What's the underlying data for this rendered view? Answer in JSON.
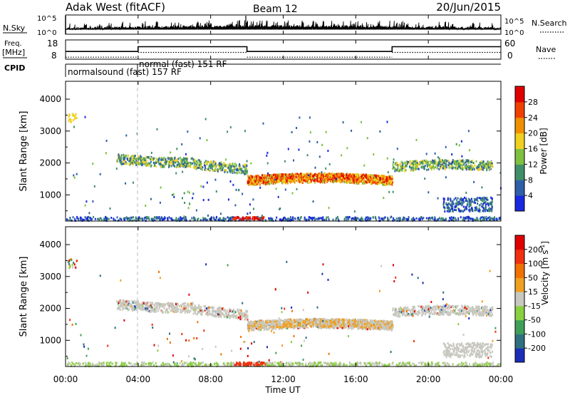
{
  "header": {
    "title": "Adak West (fitACF)",
    "beam": "Beam 12",
    "date": "20/Jun/2015"
  },
  "chart_data": [
    {
      "type": "line",
      "name_label": "N.Sky",
      "right_label": "N.Search",
      "left_ticks": [
        "10^5",
        "10^0"
      ],
      "right_ticks": [
        "10^5",
        "10^0"
      ]
    },
    {
      "type": "line",
      "name_label_top": "Freq.",
      "name_label_bottom": "[MHz]",
      "right_label": "Nave",
      "left_ticks": [
        "18",
        "8"
      ],
      "right_ticks": [
        "60",
        "0"
      ],
      "freq_segments": [
        {
          "from_h": 0,
          "to_h": 4,
          "value": 12
        },
        {
          "from_h": 4,
          "to_h": 10,
          "value": 14.5
        },
        {
          "from_h": 10,
          "to_h": 18,
          "value": 12
        },
        {
          "from_h": 18,
          "to_h": 24,
          "value": 14.5
        }
      ]
    },
    {
      "type": "heatmap",
      "cpid_label": "CPID",
      "cpid_segments": [
        {
          "label": "normalsound (fast) 157 RF",
          "from_h": 0,
          "to_h": 4
        },
        {
          "label": "normal (fast) 151 RF",
          "from_h": 4,
          "to_h": 24
        }
      ]
    },
    {
      "type": "heatmap",
      "ylabel": "Slant Range [km]",
      "yticks": [
        1000,
        2000,
        3000,
        4000
      ],
      "ylim": [
        180,
        4560
      ],
      "colorbar_label": "Power [dB]",
      "colorbar_ticks": [
        "4",
        "8",
        "12",
        "16",
        "20",
        "24",
        "28"
      ],
      "colorbar_colors": [
        "#1a28e0",
        "#2f5fa8",
        "#3f8f6a",
        "#7fc040",
        "#f0d020",
        "#f09000",
        "#f04000",
        "#e00000"
      ]
    },
    {
      "type": "heatmap",
      "ylabel": "Slant Range [km]",
      "yticks": [
        1000,
        2000,
        3000,
        4000
      ],
      "ylim": [
        180,
        4560
      ],
      "colorbar_label_main": "Velocity [m s",
      "colorbar_label_sup": "-1",
      "colorbar_label_end": "]",
      "colorbar_ticks": [
        "200",
        "100",
        "50",
        "15",
        "-15",
        "-50",
        "-100",
        "-200"
      ],
      "colorbar_colors": [
        "#1c2db8",
        "#2f6f80",
        "#3f9f5a",
        "#8ad040",
        "#c8c8c0",
        "#f0a020",
        "#f07000",
        "#f03010",
        "#e00000"
      ],
      "xlabel": "Time UT",
      "xticks": [
        "00:00",
        "04:00",
        "08:00",
        "12:00",
        "16:00",
        "20:00",
        "00:00"
      ]
    }
  ]
}
